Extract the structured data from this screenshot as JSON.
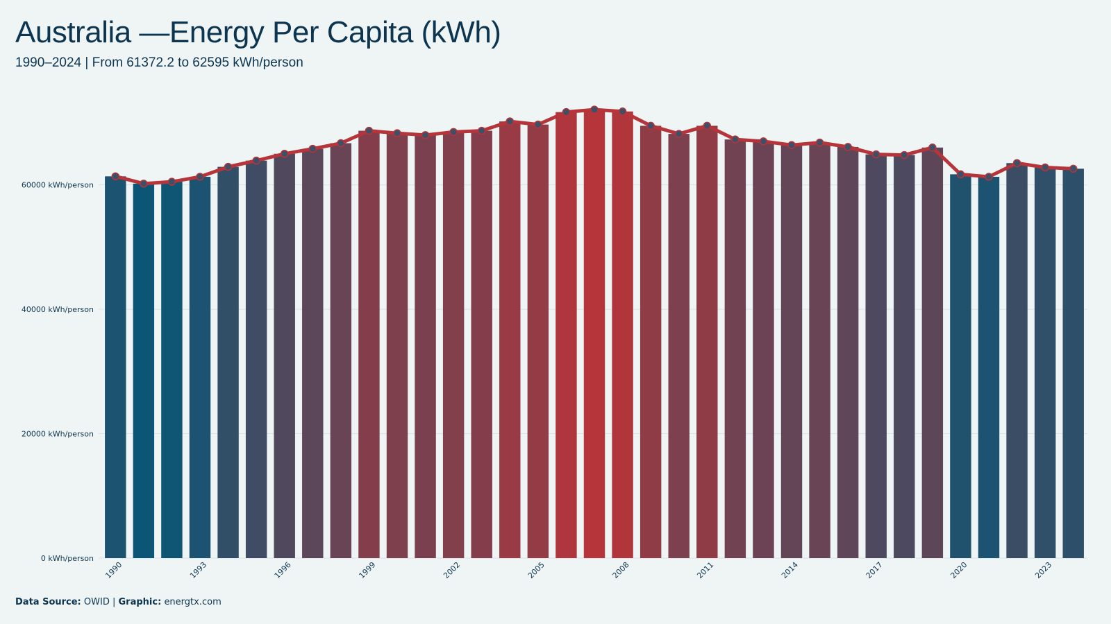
{
  "title": "Australia —Energy Per Capita (kWh)",
  "subtitle": "1990–2024 | From 61372.2  to 62595  kWh/person",
  "footer": {
    "source_label": "Data Source:",
    "source_value": "OWID",
    "separator": "|",
    "graphic_label": "Graphic:",
    "graphic_value": "energtx.com"
  },
  "colors": {
    "background": "#eff5f5",
    "line": "#b5353a",
    "point_fill": "#3c5069",
    "low": "#0b5676",
    "high": "#b5353a",
    "grid": "#d9e1e6",
    "text": "#0d3550"
  },
  "chart_data": {
    "type": "bar",
    "overlay": "line",
    "title": "Australia —Energy Per Capita (kWh)",
    "xlabel": "",
    "ylabel": "",
    "ylim": [
      0,
      73000
    ],
    "yticks": [
      0,
      20000,
      40000,
      60000
    ],
    "ytick_labels": [
      "0 kWh/person",
      "20000 kWh/person",
      "40000 kWh/person",
      "60000 kWh/person"
    ],
    "xtick_labels": [
      "1990",
      "1993",
      "1996",
      "1999",
      "2002",
      "2005",
      "2008",
      "2011",
      "2014",
      "2017",
      "2020",
      "2023"
    ],
    "grid": "horizontal",
    "categories": [
      1990,
      1991,
      1992,
      1993,
      1994,
      1995,
      1996,
      1997,
      1998,
      1999,
      2000,
      2001,
      2002,
      2003,
      2004,
      2005,
      2006,
      2007,
      2008,
      2009,
      2010,
      2011,
      2012,
      2013,
      2014,
      2015,
      2016,
      2017,
      2018,
      2019,
      2020,
      2021,
      2022,
      2023,
      2024
    ],
    "values": [
      61372.2,
      60200,
      60500,
      61300,
      62900,
      63900,
      65000,
      65800,
      66700,
      68700,
      68300,
      68000,
      68500,
      68700,
      70200,
      69700,
      71700,
      72100,
      71800,
      69500,
      68200,
      69500,
      67300,
      67000,
      66400,
      66800,
      66100,
      64900,
      64800,
      66000,
      61700,
      61300,
      63500,
      62800,
      62595
    ]
  }
}
